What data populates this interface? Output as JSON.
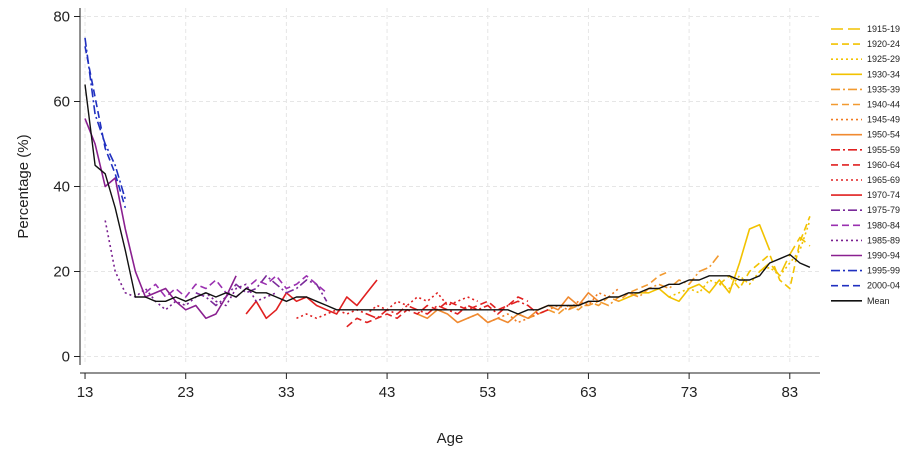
{
  "chart_data": {
    "type": "line",
    "xlabel": "Age",
    "ylabel": "Percentage (%)",
    "xlim": [
      12.5,
      86
    ],
    "ylim": [
      -2,
      82
    ],
    "xticks": [
      "13",
      "23",
      "33",
      "43",
      "53",
      "63",
      "73",
      "83"
    ],
    "yticks": [
      "0",
      "20",
      "40",
      "60",
      "80"
    ],
    "grid": true,
    "legend_position": "right",
    "series": [
      {
        "name": "1915-19",
        "color": "#f2c200",
        "dash": "longdash",
        "x": [
          80,
          81,
          82,
          83,
          84,
          85
        ],
        "y": [
          20,
          22,
          19,
          24,
          28,
          26
        ]
      },
      {
        "name": "1920-24",
        "color": "#f2c200",
        "dash": "dash",
        "x": [
          76,
          77,
          78,
          79,
          80,
          81,
          82,
          83,
          84,
          85
        ],
        "y": [
          17,
          19,
          16,
          20,
          22,
          24,
          18,
          16,
          27,
          33
        ]
      },
      {
        "name": "1925-29",
        "color": "#f2c200",
        "dash": "dot",
        "x": [
          71,
          72,
          73,
          74,
          75,
          76,
          77,
          78,
          79,
          80,
          81,
          82,
          83,
          84,
          85
        ],
        "y": [
          14,
          15,
          16,
          15,
          18,
          17,
          16,
          19,
          17,
          20,
          21,
          19,
          22,
          25,
          32
        ]
      },
      {
        "name": "1930-34",
        "color": "#f2c200",
        "dash": "solid",
        "x": [
          66,
          67,
          68,
          69,
          70,
          71,
          72,
          73,
          74,
          75,
          76,
          77,
          78,
          79,
          80,
          81
        ],
        "y": [
          13,
          14,
          15,
          15,
          16,
          14,
          13,
          16,
          17,
          15,
          18,
          15,
          22,
          30,
          31,
          25
        ]
      },
      {
        "name": "1935-39",
        "color": "#f29a30",
        "dash": "dashdot",
        "x": [
          61,
          62,
          63,
          64,
          65,
          66,
          67,
          68,
          69,
          70,
          71,
          72,
          73,
          74,
          75,
          76
        ],
        "y": [
          11,
          12,
          12,
          13,
          12,
          14,
          15,
          14,
          16,
          17,
          16,
          18,
          17,
          20,
          21,
          24
        ]
      },
      {
        "name": "1940-44",
        "color": "#f29a30",
        "dash": "dash",
        "x": [
          56,
          57,
          58,
          59,
          60,
          61,
          62,
          63,
          64,
          65,
          66,
          67,
          68,
          69,
          70,
          71
        ],
        "y": [
          10,
          9,
          10,
          11,
          10,
          12,
          11,
          13,
          12,
          14,
          13,
          15,
          16,
          17,
          19,
          20
        ]
      },
      {
        "name": "1945-49",
        "color": "#f07a20",
        "dash": "dot",
        "x": [
          51,
          52,
          53,
          54,
          55,
          56,
          57,
          58,
          59,
          60,
          61,
          62,
          63,
          64,
          65,
          66
        ],
        "y": [
          9,
          10,
          8,
          9,
          10,
          8,
          9,
          10,
          11,
          12,
          11,
          13,
          12,
          15,
          14,
          16
        ]
      },
      {
        "name": "1950-54",
        "color": "#f08a30",
        "dash": "solid",
        "x": [
          46,
          47,
          48,
          49,
          50,
          51,
          52,
          53,
          54,
          55,
          56,
          57,
          58,
          59,
          60,
          61,
          62,
          63,
          64
        ],
        "y": [
          10,
          9,
          11,
          10,
          8,
          9,
          10,
          8,
          9,
          8,
          10,
          9,
          11,
          12,
          11,
          14,
          12,
          15,
          13
        ]
      },
      {
        "name": "1955-59",
        "color": "#e02020",
        "dash": "dashdot",
        "x": [
          41,
          42,
          43,
          44,
          45,
          46,
          47,
          48,
          49,
          50,
          51,
          52,
          53,
          54,
          55,
          56,
          57,
          58,
          59
        ],
        "y": [
          10,
          9,
          11,
          10,
          12,
          11,
          10,
          12,
          11,
          10,
          12,
          11,
          12,
          10,
          12,
          13,
          12,
          10,
          11
        ]
      },
      {
        "name": "1960-64",
        "color": "#e02020",
        "dash": "dash",
        "x": [
          39,
          40,
          41,
          42,
          43,
          44,
          45,
          46,
          47,
          48,
          49,
          50,
          51,
          52,
          53,
          54,
          55,
          56,
          57
        ],
        "y": [
          7,
          9,
          8,
          9,
          10,
          9,
          11,
          10,
          12,
          11,
          13,
          12,
          11,
          12,
          13,
          11,
          12,
          14,
          13
        ]
      },
      {
        "name": "1965-69",
        "color": "#e02020",
        "dash": "dot",
        "x": [
          34,
          35,
          36,
          37,
          38,
          39,
          40,
          41,
          42,
          43,
          44,
          45,
          46,
          47,
          48,
          49,
          50,
          51,
          52
        ],
        "y": [
          9,
          10,
          9,
          10,
          11,
          10,
          11,
          10,
          12,
          11,
          13,
          12,
          14,
          13,
          15,
          12,
          13,
          14,
          13
        ]
      },
      {
        "name": "1970-74",
        "color": "#e02020",
        "dash": "solid",
        "x": [
          29,
          30,
          31,
          32,
          33,
          34,
          35,
          36,
          37,
          38,
          39,
          40,
          41,
          42
        ],
        "y": [
          10,
          13,
          9,
          11,
          15,
          13,
          14,
          12,
          11,
          10,
          14,
          12,
          15,
          18
        ]
      },
      {
        "name": "1975-79",
        "color": "#7a2a9a",
        "dash": "dashdot",
        "x": [
          24,
          25,
          26,
          27,
          28,
          29,
          30,
          31,
          32,
          33,
          34,
          35,
          36,
          37
        ],
        "y": [
          15,
          14,
          12,
          14,
          17,
          15,
          16,
          19,
          17,
          15,
          16,
          18,
          17,
          13
        ]
      },
      {
        "name": "1980-84",
        "color": "#9a30b0",
        "dash": "dash",
        "x": [
          19,
          20,
          21,
          22,
          23,
          24,
          25,
          26,
          27,
          28,
          29,
          30,
          31,
          32,
          33,
          34,
          35,
          36,
          37
        ],
        "y": [
          15,
          17,
          14,
          16,
          14,
          17,
          16,
          18,
          15,
          14,
          16,
          18,
          17,
          19,
          16,
          17,
          19,
          17,
          15
        ]
      },
      {
        "name": "1985-89",
        "color": "#7a2090",
        "dash": "dot",
        "x": [
          15,
          16,
          17,
          18,
          19,
          20,
          21,
          22,
          23,
          24,
          25,
          26,
          27,
          28,
          29,
          30,
          31,
          32
        ],
        "y": [
          32,
          20,
          15,
          14,
          16,
          13,
          11,
          13,
          12,
          14,
          15,
          13,
          12,
          16,
          17,
          13,
          14,
          15
        ]
      },
      {
        "name": "1990-94",
        "color": "#8a2090",
        "dash": "solid",
        "x": [
          13,
          14,
          15,
          16,
          17,
          18,
          19,
          20,
          21,
          22,
          23,
          24,
          25,
          26,
          27,
          28
        ],
        "y": [
          56,
          50,
          40,
          42,
          30,
          20,
          14,
          15,
          16,
          13,
          11,
          12,
          9,
          10,
          14,
          19
        ]
      },
      {
        "name": "1995-99",
        "color": "#2030c0",
        "dash": "dashdot",
        "x": [
          13,
          14,
          15,
          16,
          17
        ],
        "y": [
          75,
          57,
          50,
          45,
          37
        ]
      },
      {
        "name": "2000-04",
        "color": "#2030c0",
        "dash": "dash",
        "x": [
          13,
          14,
          15,
          16,
          17
        ],
        "y": [
          73,
          61,
          49,
          43,
          35
        ]
      },
      {
        "name": "Mean",
        "color": "#111111",
        "dash": "solid",
        "x": [
          13,
          14,
          15,
          16,
          17,
          18,
          19,
          20,
          21,
          22,
          23,
          24,
          25,
          26,
          27,
          28,
          29,
          30,
          31,
          32,
          33,
          34,
          35,
          36,
          37,
          38,
          39,
          40,
          41,
          42,
          43,
          44,
          45,
          46,
          47,
          48,
          49,
          50,
          51,
          52,
          53,
          54,
          55,
          56,
          57,
          58,
          59,
          60,
          61,
          62,
          63,
          64,
          65,
          66,
          67,
          68,
          69,
          70,
          71,
          72,
          73,
          74,
          75,
          76,
          77,
          78,
          79,
          80,
          81,
          82,
          83,
          84,
          85
        ],
        "y": [
          64,
          45,
          43,
          35,
          25,
          14,
          14,
          13,
          13,
          14,
          13,
          14,
          15,
          14,
          15,
          14,
          16,
          15,
          15,
          14,
          13,
          14,
          14,
          13,
          12,
          11,
          11,
          11,
          11,
          11,
          11,
          11,
          11,
          11,
          11,
          11,
          11,
          11,
          11,
          11,
          11,
          11,
          11,
          10,
          11,
          11,
          12,
          12,
          12,
          12,
          13,
          13,
          14,
          14,
          15,
          15,
          16,
          16,
          17,
          17,
          18,
          18,
          19,
          19,
          19,
          18,
          18,
          19,
          22,
          23,
          24,
          22,
          21
        ]
      }
    ]
  }
}
